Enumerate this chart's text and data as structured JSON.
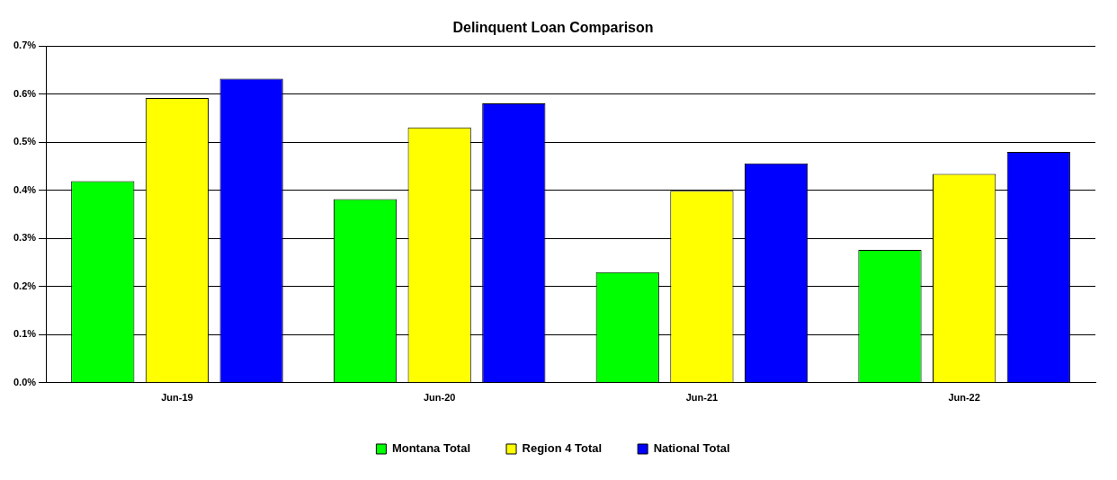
{
  "chart_data": {
    "type": "bar",
    "title": "Delinquent Loan Comparison",
    "categories": [
      "Jun-19",
      "Jun-20",
      "Jun-21",
      "Jun-22"
    ],
    "series": [
      {
        "name": "Montana Total",
        "color": "#00ff00",
        "values": [
          0.419,
          0.382,
          0.23,
          0.276
        ]
      },
      {
        "name": "Region 4 Total",
        "color": "#ffff00",
        "values": [
          0.592,
          0.531,
          0.399,
          0.434
        ]
      },
      {
        "name": "National Total",
        "color": "#0000ff",
        "values": [
          0.632,
          0.581,
          0.456,
          0.48
        ]
      }
    ],
    "ylim": [
      0,
      0.7
    ],
    "yticks": [
      {
        "value": 0,
        "label": "0.0%"
      },
      {
        "value": 0.1,
        "label": "0.1%"
      },
      {
        "value": 0.2,
        "label": "0.2%"
      },
      {
        "value": 0.3,
        "label": "0.3%"
      },
      {
        "value": 0.4,
        "label": "0.4%"
      },
      {
        "value": 0.5,
        "label": "0.5%"
      },
      {
        "value": 0.6,
        "label": "0.6%"
      },
      {
        "value": 0.7,
        "label": "0.7%"
      }
    ],
    "grid": "y",
    "legend": "bottom"
  }
}
